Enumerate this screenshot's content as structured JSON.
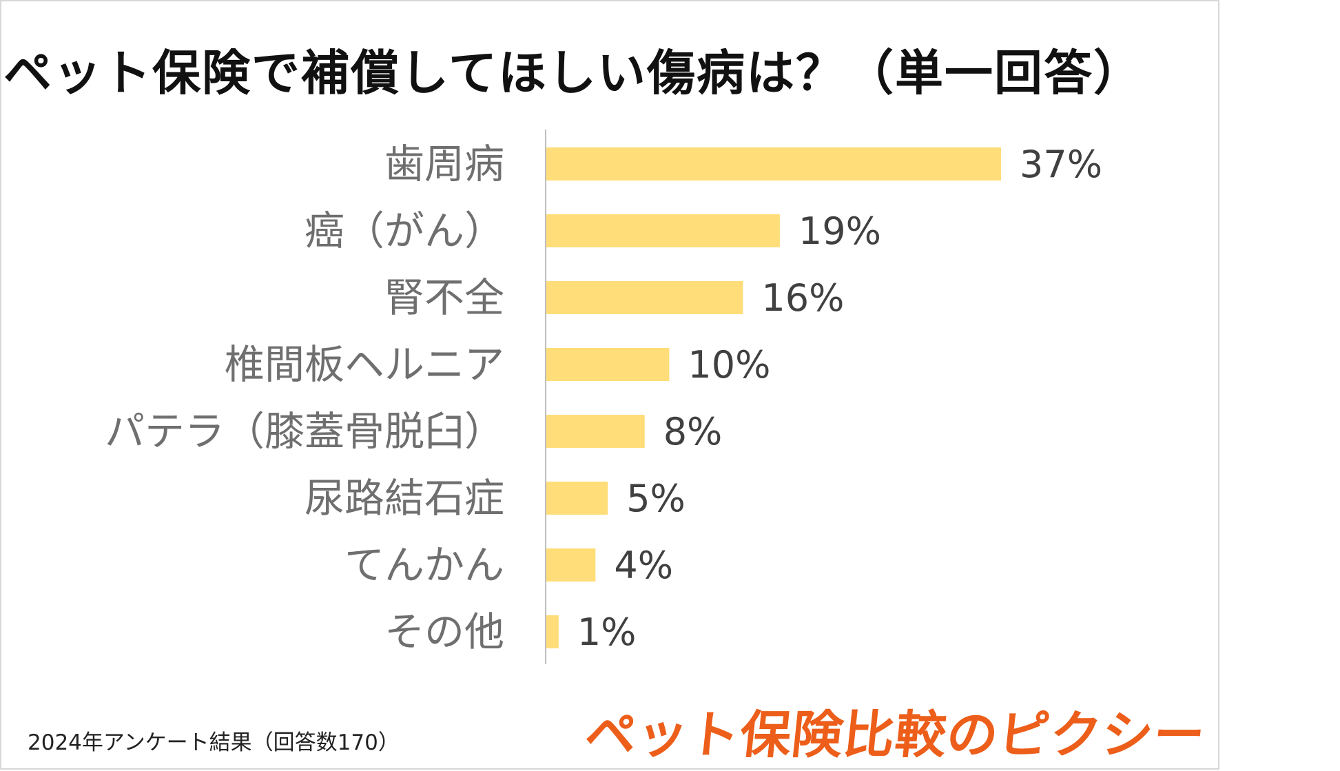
{
  "title": "ペット保険で補償してほしい傷病は？（単一回答）",
  "footnote": "2024年アンケート結果（回答数170）",
  "brand": "ペット保険比較のピクシー",
  "colors": {
    "bar": "#ffdd78",
    "axis": "#bfbfbf",
    "brand": "#ec5e1a"
  },
  "chart_data": {
    "type": "bar",
    "orientation": "horizontal",
    "title": "ペット保険で補償してほしい傷病は？（単一回答）",
    "categories": [
      "歯周病",
      "癌（がん）",
      "腎不全",
      "椎間板ヘルニア",
      "パテラ（膝蓋骨脱臼）",
      "尿路結石症",
      "てんかん",
      "その他"
    ],
    "values": [
      37,
      19,
      16,
      10,
      8,
      5,
      4,
      1
    ],
    "value_labels": [
      "37%",
      "19%",
      "16%",
      "10%",
      "8%",
      "5%",
      "4%",
      "1%"
    ],
    "unit": "%",
    "xlim": [
      0,
      37
    ],
    "grid": false,
    "legend": "none"
  }
}
